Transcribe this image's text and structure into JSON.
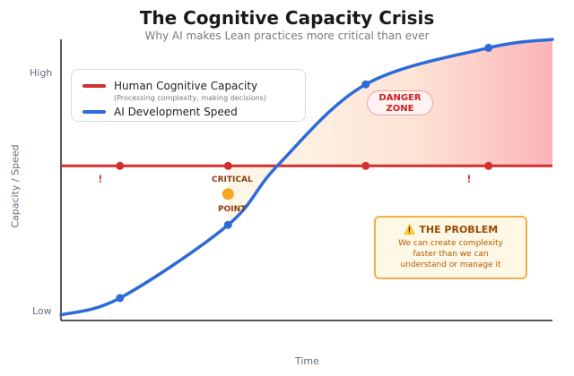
{
  "chart_data": {
    "type": "line",
    "title": "The Cognitive Capacity Crisis",
    "subtitle": "Why AI makes Lean practices more critical than ever",
    "xlabel": "Time",
    "ylabel": "Capacity / Speed",
    "x_range": [
      0,
      10
    ],
    "y_range": [
      0,
      10
    ],
    "y_ticks": [
      {
        "value": 0.2,
        "label": "Low"
      },
      {
        "value": 9.6,
        "label": "High"
      }
    ],
    "grid": false,
    "legend_position": "top-left",
    "legend": {
      "items": [
        {
          "label": "Human Cognitive Capacity",
          "note": "(Processing complexity, making decisions)",
          "color": "#d32f2f"
        },
        {
          "label": "AI Development Speed",
          "color": "#2c6bd9"
        }
      ]
    },
    "series": [
      {
        "name": "Human Cognitive Capacity",
        "color": "#d32f2f",
        "x": [
          0,
          1.2,
          3.4,
          6.2,
          8.7,
          10
        ],
        "y": [
          5.5,
          5.5,
          5.5,
          5.5,
          5.5,
          5.5
        ],
        "marker_x": [
          1.2,
          3.4,
          6.2,
          8.7
        ]
      },
      {
        "name": "AI Development Speed",
        "color": "#2c6bd9",
        "x": [
          0,
          1.2,
          3.4,
          4.4,
          6.2,
          8.7,
          10
        ],
        "y": [
          0.2,
          0.8,
          3.4,
          5.5,
          8.4,
          9.7,
          10.0
        ],
        "marker_x": [
          1.2,
          3.4,
          6.2,
          8.7
        ]
      }
    ],
    "annotations": {
      "danger_zone": {
        "label_line1": "DANGER",
        "label_line2": "ZONE"
      },
      "critical_point": {
        "x": 3.4,
        "y": 4.5,
        "label_top": "CRITICAL",
        "label_bottom": "POINT",
        "color": "#f5a623"
      },
      "warning_markers": [
        {
          "x": 0.8,
          "symbol": "!"
        },
        {
          "x": 8.3,
          "symbol": "!"
        }
      ],
      "problem_box": {
        "title": "THE PROBLEM",
        "icon": "warning-icon",
        "text": "We can create complexity faster than we can understand or manage it"
      }
    }
  }
}
